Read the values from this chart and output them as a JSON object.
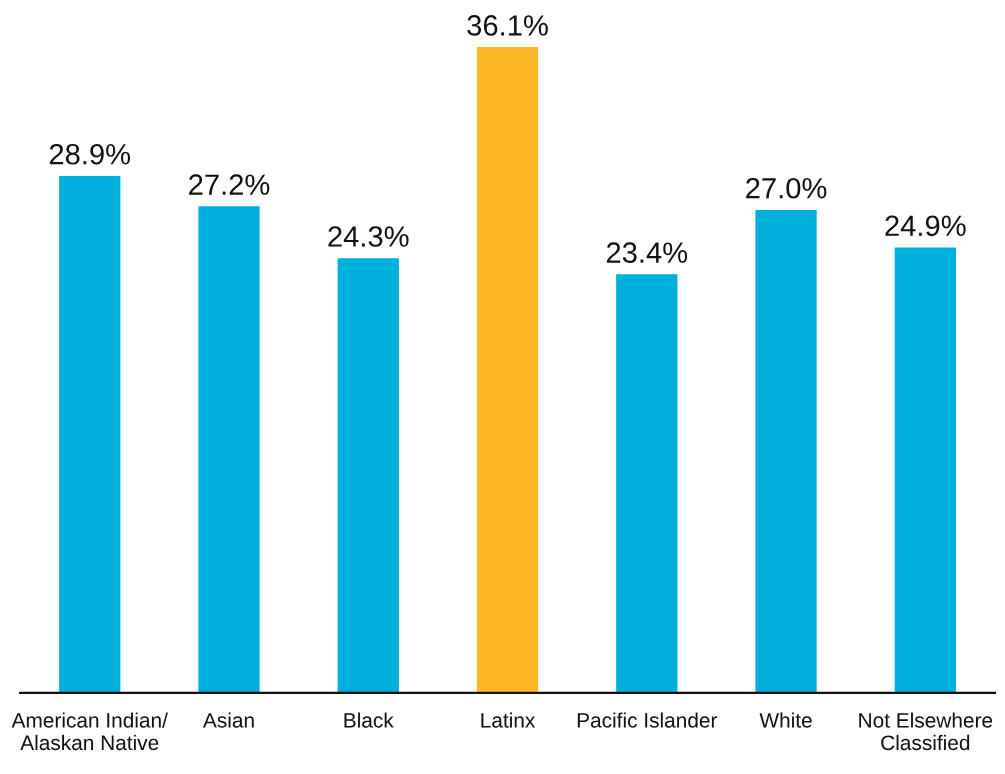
{
  "chart_data": {
    "type": "bar",
    "categories": [
      "American Indian/\nAlaskan Native",
      "Asian",
      "Black",
      "Latinx",
      "Pacific Islander",
      "White",
      "Not Elsewhere\nClassified"
    ],
    "values": [
      28.9,
      27.2,
      24.3,
      36.1,
      23.4,
      27.0,
      24.9
    ],
    "value_labels": [
      "28.9%",
      "27.2%",
      "24.3%",
      "36.1%",
      "23.4%",
      "27.0%",
      "24.9%"
    ],
    "colors": [
      "#00b0dc",
      "#00b0dc",
      "#00b0dc",
      "#fbb726",
      "#00b0dc",
      "#00b0dc",
      "#00b0dc"
    ],
    "tick_labels": "x"
  }
}
